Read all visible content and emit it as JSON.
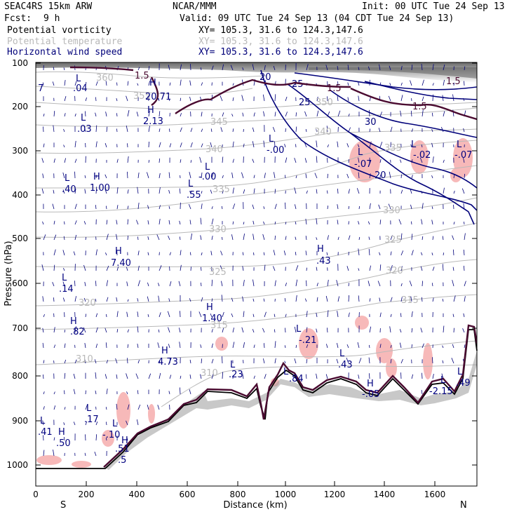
{
  "header": {
    "model": "SEAC4RS 15km ARW",
    "org": "NCAR/MMM",
    "init": "Init: 00 UTC Tue 24 Sep 13",
    "fcst_label": "Fcst:",
    "fcst_value": "9 h",
    "valid": "Valid: 09 UTC Tue 24 Sep 13 (04 CDT Tue 24 Sep 13)",
    "fields": [
      {
        "name": "Potential vorticity",
        "xy": "XY= 105.3, 31.6 to 124.3,147.6",
        "color": "#000000"
      },
      {
        "name": "Potential temperature",
        "xy": "XY= 105.3, 31.6 to 124.3,147.6",
        "color": "#b9b9b9"
      },
      {
        "name": "Horizontal wind speed",
        "xy": "XY= 105.3, 31.6 to 124.3,147.6",
        "color": "#00007a"
      }
    ]
  },
  "axes": {
    "ylabel": "Pressure (hPa)",
    "xlabel": "Distance (km)",
    "left_end": "S",
    "right_end": "N",
    "x_ticks": [
      "0",
      "200",
      "400",
      "600",
      "800",
      "1000",
      "1200",
      "1400",
      "1600"
    ],
    "y_ticks": [
      "100",
      "200",
      "300",
      "400",
      "500",
      "600",
      "700",
      "800",
      "900",
      "1000"
    ]
  },
  "theta_labels": [
    "360",
    "355",
    "350",
    "345",
    "340",
    "340",
    "335",
    "335",
    "330",
    "330",
    "325",
    "325",
    "320",
    "320",
    "315",
    "315",
    "310",
    "310"
  ],
  "wind_labels": [
    "20",
    "25",
    "25",
    "30",
    "20"
  ],
  "pv_labels": [
    "1.5",
    "1.5",
    "1.5",
    "1.5"
  ],
  "extrema": [
    {
      "t": "L",
      "v": ".04"
    },
    {
      "t": "H",
      "v": "20.71"
    },
    {
      "t": "H",
      "v": "2.13"
    },
    {
      "t": "L",
      "v": ".03"
    },
    {
      "t": "L",
      "v": "-.00"
    },
    {
      "t": "L",
      "v": "-.07"
    },
    {
      "t": "L",
      "v": "-.02"
    },
    {
      "t": "L",
      "v": "-.07"
    },
    {
      "t": "L",
      "v": "-.00"
    },
    {
      "t": "L",
      "v": ".40"
    },
    {
      "t": "H",
      "v": "1.00"
    },
    {
      "t": "L",
      "v": ".55"
    },
    {
      "t": "H",
      "v": "7.40"
    },
    {
      "t": "H",
      "v": ".43"
    },
    {
      "t": "L",
      "v": ".14"
    },
    {
      "t": "H",
      "v": "1.40"
    },
    {
      "t": "H",
      "v": ".82"
    },
    {
      "t": "L",
      "v": "-.21"
    },
    {
      "t": "H",
      "v": "4.73"
    },
    {
      "t": "L",
      "v": ".23"
    },
    {
      "t": "L",
      "v": ".43"
    },
    {
      "t": "L",
      "v": ".17"
    },
    {
      "t": "L",
      "v": ".41"
    },
    {
      "t": "H",
      "v": ".50"
    },
    {
      "t": "L",
      "v": "-.10"
    },
    {
      "t": "H",
      "v": ".51"
    },
    {
      "t": "H",
      "v": "-.05"
    },
    {
      "t": "L",
      "v": "-2.15"
    },
    {
      "t": "L",
      "v": ".49"
    },
    {
      "t": "L",
      "v": ".84"
    }
  ],
  "edge_labels": [
    "7",
    ".5"
  ],
  "colors": {
    "pv_contour": "#4a0a30",
    "theta_contour": "#b9b9b9",
    "wind_contour": "#00007a",
    "pv_shade": "#f7b9b9",
    "terrain": "#000000",
    "label": "#000080"
  }
}
